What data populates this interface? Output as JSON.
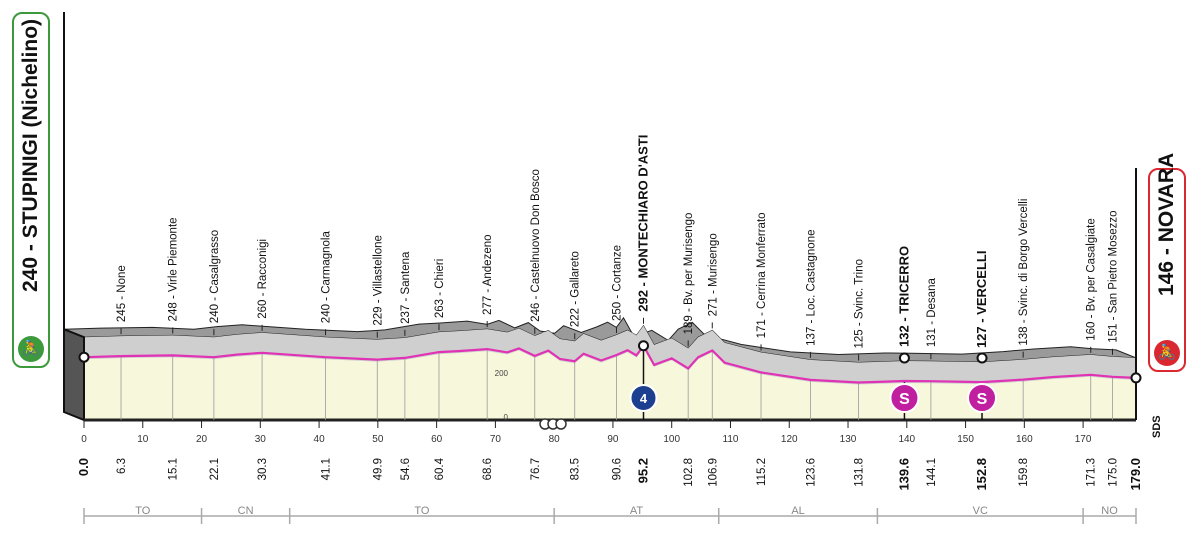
{
  "chart_data": {
    "type": "area",
    "title": "",
    "xlabel": "",
    "ylabel": "",
    "xlim": [
      0,
      179
    ],
    "km_ticks": [
      0,
      10,
      20,
      30,
      40,
      50,
      60,
      70,
      80,
      90,
      100,
      110,
      120,
      130,
      140,
      150,
      160,
      170
    ],
    "km_tick_labels": [
      "0",
      "10",
      "20",
      "30",
      "40",
      "50",
      "60",
      "70",
      "80",
      "90",
      "100",
      "110",
      "120",
      "130",
      "140",
      "150",
      "160",
      "170"
    ],
    "elevation_axis_labels": [
      "200",
      "0"
    ],
    "start": {
      "label": "240 - STUPINIGI (Nichelino)",
      "altitude": 240,
      "km": "0.0"
    },
    "finish": {
      "label": "146 - NOVARA",
      "altitude": 146,
      "km": "179.0"
    },
    "waypoints": [
      {
        "km": 6.3,
        "km_label": "6.3",
        "label": "245 - None",
        "altitude": 245,
        "bold": false
      },
      {
        "km": 15.1,
        "km_label": "15.1",
        "label": "248 - Virle Piemonte",
        "altitude": 248,
        "bold": false
      },
      {
        "km": 22.1,
        "km_label": "22.1",
        "label": "240 - Casalgrasso",
        "altitude": 240,
        "bold": false
      },
      {
        "km": 30.3,
        "km_label": "30.3",
        "label": "260 - Racconigi",
        "altitude": 260,
        "bold": false
      },
      {
        "km": 41.1,
        "km_label": "41.1",
        "label": "240 - Carmagnola",
        "altitude": 240,
        "bold": false
      },
      {
        "km": 49.9,
        "km_label": "49.9",
        "label": "229 - Villastellone",
        "altitude": 229,
        "bold": false
      },
      {
        "km": 54.6,
        "km_label": "54.6",
        "label": "237 - Santena",
        "altitude": 237,
        "bold": false
      },
      {
        "km": 60.4,
        "km_label": "60.4",
        "label": "263 - Chieri",
        "altitude": 263,
        "bold": false
      },
      {
        "km": 68.6,
        "km_label": "68.6",
        "label": "277 - Andezeno",
        "altitude": 277,
        "bold": false
      },
      {
        "km": 76.7,
        "km_label": "76.7",
        "label": "246 - Castelnuovo Don Bosco",
        "altitude": 246,
        "bold": false
      },
      {
        "km": 83.5,
        "km_label": "83.5",
        "label": "222 - Gallareto",
        "altitude": 222,
        "bold": false
      },
      {
        "km": 90.6,
        "km_label": "90.6",
        "label": "250 - Cortanze",
        "altitude": 250,
        "bold": false
      },
      {
        "km": 95.2,
        "km_label": "95.2",
        "label": "292 - MONTECHIARO D'ASTI",
        "altitude": 292,
        "bold": true
      },
      {
        "km": 102.8,
        "km_label": "102.8",
        "label": "189 - Bv. per Murisengo",
        "altitude": 189,
        "bold": false
      },
      {
        "km": 106.9,
        "km_label": "106.9",
        "label": "271 - Murisengo",
        "altitude": 271,
        "bold": false
      },
      {
        "km": 115.2,
        "km_label": "115.2",
        "label": "171 - Cerrina Monferrato",
        "altitude": 171,
        "bold": false
      },
      {
        "km": 123.6,
        "km_label": "123.6",
        "label": "137 - Loc. Castagnone",
        "altitude": 137,
        "bold": false
      },
      {
        "km": 131.8,
        "km_label": "131.8",
        "label": "125 - Svinc. Trino",
        "altitude": 125,
        "bold": false
      },
      {
        "km": 139.6,
        "km_label": "139.6",
        "label": "132 - TRICERRO",
        "altitude": 132,
        "bold": true
      },
      {
        "km": 144.1,
        "km_label": "144.1",
        "label": "131 - Desana",
        "altitude": 131,
        "bold": false
      },
      {
        "km": 152.8,
        "km_label": "152.8",
        "label": "127 - VERCELLI",
        "altitude": 127,
        "bold": true
      },
      {
        "km": 159.8,
        "km_label": "159.8",
        "label": "138 - Svinc. di Borgo Vercelli",
        "altitude": 138,
        "bold": false
      },
      {
        "km": 171.3,
        "km_label": "171.3",
        "label": "160 - Bv. per Casalgiate",
        "altitude": 160,
        "bold": false
      },
      {
        "km": 175.0,
        "km_label": "175.0",
        "label": "151 - San Pietro Mosezzo",
        "altitude": 151,
        "bold": false
      }
    ],
    "elevation_profile": {
      "km": [
        0,
        6.3,
        15.1,
        22.1,
        26,
        30.3,
        41.1,
        49.9,
        54.6,
        60.4,
        64,
        68.6,
        72,
        74,
        76.7,
        79,
        81,
        83.5,
        85,
        88,
        90.6,
        92.5,
        94,
        95.2,
        97,
        100,
        102.8,
        104.5,
        106.9,
        109,
        115.2,
        123.6,
        131.8,
        139.6,
        144.1,
        152.8,
        159.8,
        165,
        171.3,
        175,
        179
      ],
      "altitude": [
        240,
        245,
        248,
        240,
        252,
        260,
        240,
        229,
        237,
        263,
        268,
        277,
        262,
        280,
        246,
        270,
        232,
        222,
        256,
        225,
        250,
        272,
        248,
        292,
        205,
        235,
        189,
        240,
        271,
        215,
        171,
        137,
        125,
        132,
        131,
        127,
        138,
        150,
        160,
        151,
        146
      ]
    },
    "route_line_y_offset_m": 0,
    "provinces": [
      {
        "code": "TO",
        "from": 0,
        "to": 20
      },
      {
        "code": "CN",
        "from": 20,
        "to": 35
      },
      {
        "code": "TO",
        "from": 35,
        "to": 80
      },
      {
        "code": "AT",
        "from": 80,
        "to": 108
      },
      {
        "code": "AL",
        "from": 108,
        "to": 135
      },
      {
        "code": "VC",
        "from": 135,
        "to": 170
      },
      {
        "code": "NO",
        "from": 170,
        "to": 179
      }
    ],
    "sprints": [
      {
        "km": 139.6,
        "symbol": "S"
      },
      {
        "km": 152.8,
        "symbol": "S"
      }
    ],
    "kom": [
      {
        "km": 95.2,
        "category": "4"
      }
    ],
    "sds_label": "SDS",
    "colors": {
      "profile_top": "#9a9a9a",
      "profile_body": "#cfcfcf",
      "plain": "#f7f7dc",
      "route": "#e032b4",
      "sprint": "#c020a0",
      "kom": "#1d3f8f",
      "start": "#3c9a3c",
      "finish": "#d9282f"
    }
  },
  "signs": {
    "start_label": "240 - STUPINIGI (Nichelino)",
    "finish_label": "146 - NOVARA",
    "start_icon": "bike-icon",
    "finish_icon": "bike-icon",
    "badge_glyph": "🚴"
  }
}
